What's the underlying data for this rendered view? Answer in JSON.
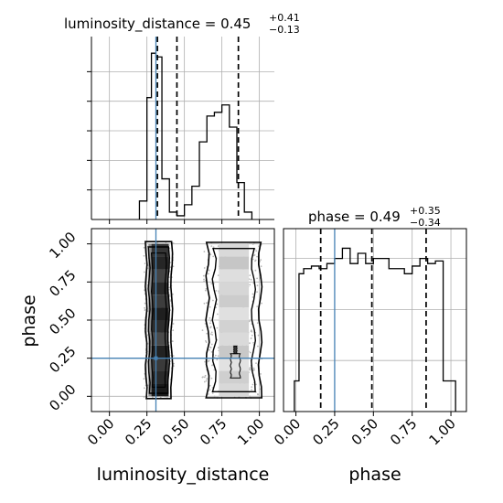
{
  "chart_data": [
    {
      "type": "histogram",
      "panel": "luminosity_distance-marginal",
      "title": {
        "param": "luminosity_distance",
        "value": "0.45",
        "plus": "+0.41",
        "minus": "−0.13"
      },
      "xlim": [
        -0.12,
        1.1
      ],
      "x_ticks": [
        0.0,
        0.25,
        0.5,
        0.75,
        1.0
      ],
      "bin_edges": [
        0.2,
        0.25,
        0.28,
        0.31,
        0.35,
        0.4,
        0.45,
        0.5,
        0.55,
        0.6,
        0.65,
        0.7,
        0.75,
        0.8,
        0.85,
        0.9,
        0.95
      ],
      "counts": [
        5,
        33,
        45,
        44,
        11,
        2,
        1,
        4,
        9,
        21,
        28,
        29,
        31,
        25,
        10,
        2
      ],
      "quantiles": [
        0.32,
        0.45,
        0.86
      ],
      "truth": 0.31,
      "grid": true
    },
    {
      "type": "histogram",
      "panel": "phase-marginal",
      "title": {
        "param": "phase",
        "value": "0.49",
        "plus": "+0.35",
        "minus": "−0.34"
      },
      "xlim": [
        -0.08,
        1.1
      ],
      "x_ticks": [
        0.0,
        0.25,
        0.5,
        0.75,
        1.0
      ],
      "bin_edges": [
        -0.01,
        0.02,
        0.05,
        0.1,
        0.15,
        0.2,
        0.25,
        0.3,
        0.35,
        0.4,
        0.45,
        0.5,
        0.55,
        0.6,
        0.65,
        0.7,
        0.75,
        0.8,
        0.85,
        0.9,
        0.95,
        1.0,
        1.03
      ],
      "counts": [
        6,
        27,
        28,
        28.5,
        28,
        29,
        30,
        32,
        29,
        31,
        29,
        30,
        30,
        28,
        28,
        27,
        28.5,
        30,
        29,
        29.5,
        6,
        6
      ],
      "quantiles": [
        0.16,
        0.49,
        0.84
      ],
      "truth": 0.25,
      "grid": true
    },
    {
      "type": "contour-2d",
      "panel": "luminosity_distance-vs-phase",
      "xlabel": "luminosity_distance",
      "ylabel": "phase",
      "xlim": [
        -0.12,
        1.1
      ],
      "ylim": [
        -0.1,
        1.1
      ],
      "x_ticks": [
        0.0,
        0.25,
        0.5,
        0.75,
        1.0
      ],
      "y_ticks": [
        0.0,
        0.25,
        0.5,
        0.75,
        1.0
      ],
      "modes": [
        {
          "x_center": 0.33,
          "x_width": 0.11,
          "y_range": [
            0.0,
            1.0
          ],
          "density": "high"
        },
        {
          "x_center": 0.83,
          "x_width": 0.24,
          "y_range": [
            0.0,
            1.0
          ],
          "density": "low"
        }
      ],
      "truth": {
        "x": 0.31,
        "y": 0.25
      },
      "grid": true
    }
  ],
  "tick_labels": [
    "0.00",
    "0.25",
    "0.50",
    "0.75",
    "1.00"
  ],
  "x_axis_label": "luminosity_distance",
  "phase_label": "phase",
  "colors": {
    "line": "#000000",
    "truth": "#4682b4",
    "grid": "#b0b0b0",
    "points": "#b8b8b8"
  }
}
